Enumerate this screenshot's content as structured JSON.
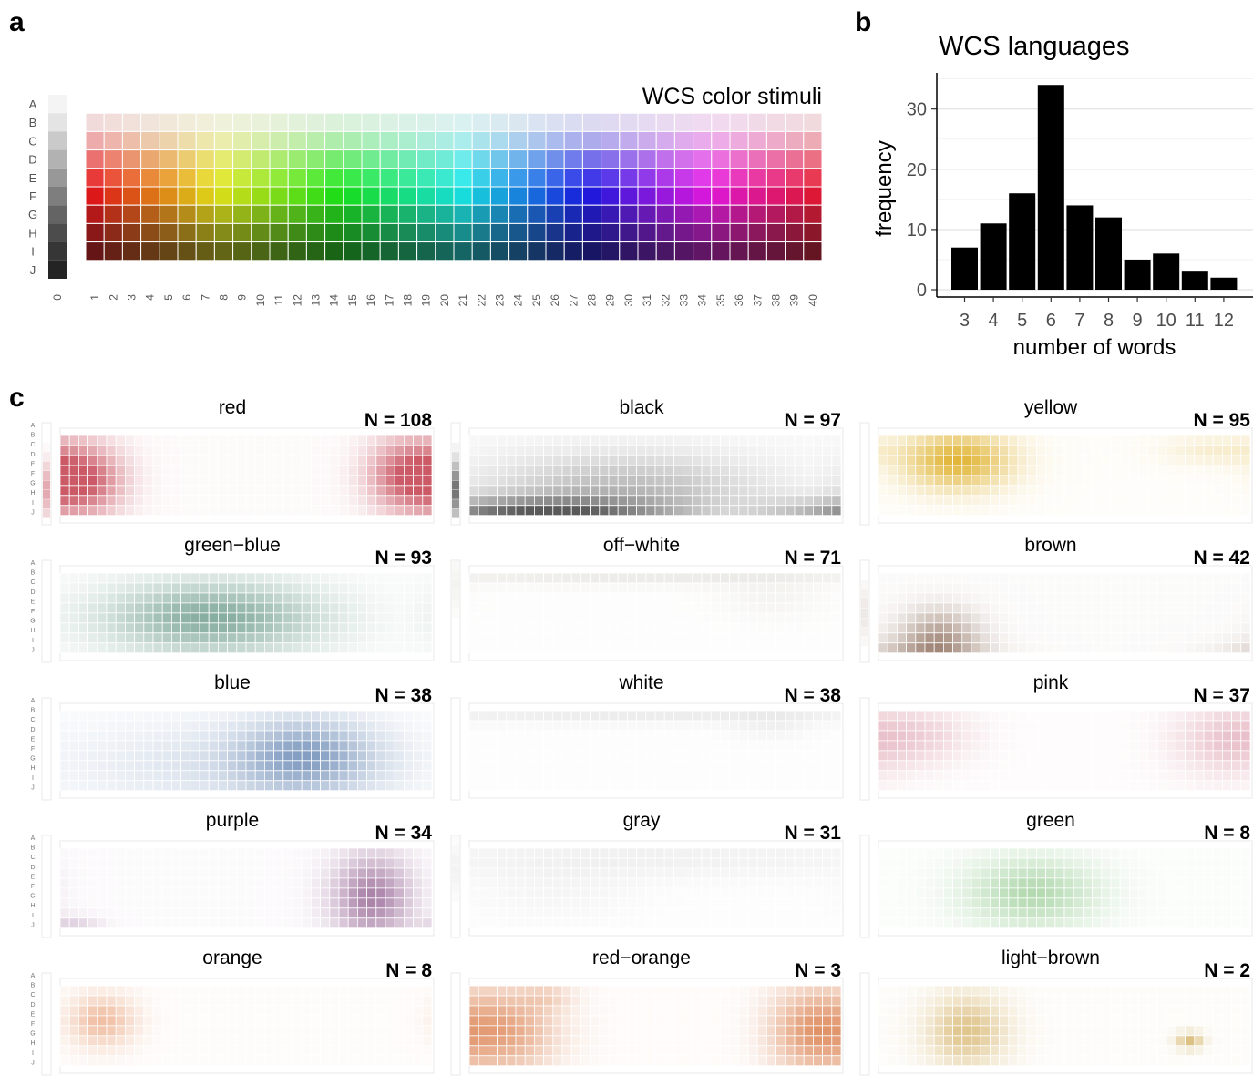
{
  "panel_labels": {
    "a": "a",
    "b": "b",
    "c": "c"
  },
  "chart_data": [
    {
      "type": "heatmap",
      "title": "WCS color stimuli",
      "row_labels": [
        "A",
        "B",
        "C",
        "D",
        "E",
        "F",
        "G",
        "H",
        "I",
        "J"
      ],
      "column_labels": [
        "0",
        "1",
        "2",
        "3",
        "4",
        "5",
        "6",
        "7",
        "8",
        "9",
        "10",
        "11",
        "12",
        "13",
        "14",
        "15",
        "16",
        "17",
        "18",
        "19",
        "20",
        "21",
        "22",
        "23",
        "24",
        "25",
        "26",
        "27",
        "28",
        "29",
        "30",
        "31",
        "32",
        "33",
        "34",
        "35",
        "36",
        "37",
        "38",
        "39",
        "40"
      ],
      "achromatic_column": "0",
      "chromatic_rows": [
        "B",
        "C",
        "D",
        "E",
        "F",
        "G",
        "H",
        "I"
      ]
    },
    {
      "type": "bar",
      "title": "WCS languages",
      "xlabel": "number of words",
      "ylabel": "frequency",
      "categories": [
        "3",
        "4",
        "5",
        "6",
        "7",
        "8",
        "9",
        "10",
        "11",
        "12"
      ],
      "values": [
        7,
        11,
        16,
        34,
        14,
        12,
        5,
        6,
        3,
        2
      ],
      "ylim": [
        0,
        35
      ],
      "yticks": [
        "0",
        "10",
        "20",
        "30"
      ],
      "bar_color": "#000000",
      "grid": true
    },
    {
      "type": "heatmap",
      "panels": [
        {
          "name": "red",
          "n_label": "N = 108",
          "color": "#c8505e"
        },
        {
          "name": "black",
          "n_label": "N = 97",
          "color": "#505050"
        },
        {
          "name": "yellow",
          "n_label": "N = 95",
          "color": "#dfb12c"
        },
        {
          "name": "green−blue",
          "n_label": "N = 93",
          "color": "#6f9d8d"
        },
        {
          "name": "off−white",
          "n_label": "N = 71",
          "color": "#c9c4b8"
        },
        {
          "name": "brown",
          "n_label": "N = 42",
          "color": "#8a6a58"
        },
        {
          "name": "blue",
          "n_label": "N = 38",
          "color": "#7f9abf"
        },
        {
          "name": "white",
          "n_label": "N = 38",
          "color": "#bdbdbd"
        },
        {
          "name": "pink",
          "n_label": "N = 37",
          "color": "#d993a3"
        },
        {
          "name": "purple",
          "n_label": "N = 34",
          "color": "#9a6a98"
        },
        {
          "name": "gray",
          "n_label": "N = 31",
          "color": "#c2c2c2"
        },
        {
          "name": "green",
          "n_label": "N = 8",
          "color": "#7fc07a"
        },
        {
          "name": "orange",
          "n_label": "N = 8",
          "color": "#e69060"
        },
        {
          "name": "red−orange",
          "n_label": "N = 3",
          "color": "#d97a46"
        },
        {
          "name": "light−brown",
          "n_label": "N = 2",
          "color": "#c99b3a"
        }
      ]
    }
  ]
}
